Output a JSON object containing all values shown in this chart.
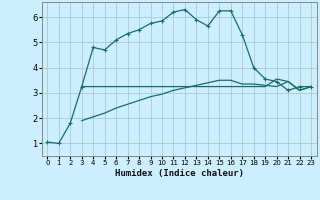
{
  "xlabel": "Humidex (Indice chaleur)",
  "background_color": "#cceeff",
  "line_color": "#1a6b6b",
  "grid_color": "#aacccc",
  "xlim": [
    -0.5,
    23.5
  ],
  "ylim": [
    0.5,
    6.6
  ],
  "xticks": [
    0,
    1,
    2,
    3,
    4,
    5,
    6,
    7,
    8,
    9,
    10,
    11,
    12,
    13,
    14,
    15,
    16,
    17,
    18,
    19,
    20,
    21,
    22,
    23
  ],
  "yticks": [
    1,
    2,
    3,
    4,
    5,
    6
  ],
  "line1_x": [
    0,
    1,
    2,
    3,
    4,
    5,
    6,
    7,
    8,
    9,
    10,
    11,
    12,
    13,
    14,
    15,
    16,
    17,
    18,
    19,
    20,
    21,
    22,
    23
  ],
  "line1_y": [
    1.05,
    1.0,
    1.8,
    3.25,
    4.8,
    4.7,
    5.1,
    5.35,
    5.5,
    5.75,
    5.85,
    6.2,
    6.3,
    5.9,
    5.65,
    6.25,
    6.25,
    5.3,
    4.0,
    3.55,
    3.45,
    3.1,
    3.25,
    3.25
  ],
  "line2_x": [
    3,
    4,
    5,
    6,
    7,
    8,
    9,
    10,
    11,
    12,
    13,
    14,
    15,
    16,
    17,
    18,
    19,
    20,
    21,
    22,
    23
  ],
  "line2_y": [
    3.25,
    3.25,
    3.25,
    3.25,
    3.25,
    3.25,
    3.25,
    3.25,
    3.25,
    3.25,
    3.25,
    3.25,
    3.25,
    3.25,
    3.25,
    3.25,
    3.25,
    3.55,
    3.45,
    3.1,
    3.25
  ],
  "line3_x": [
    3,
    4,
    5,
    6,
    7,
    8,
    9,
    10,
    11,
    12,
    13,
    14,
    15,
    16,
    17,
    18,
    19,
    20,
    21,
    22,
    23
  ],
  "line3_y": [
    1.9,
    2.05,
    2.2,
    2.4,
    2.55,
    2.7,
    2.85,
    2.95,
    3.1,
    3.2,
    3.3,
    3.4,
    3.5,
    3.5,
    3.35,
    3.35,
    3.3,
    3.25,
    3.45,
    3.1,
    3.25
  ]
}
